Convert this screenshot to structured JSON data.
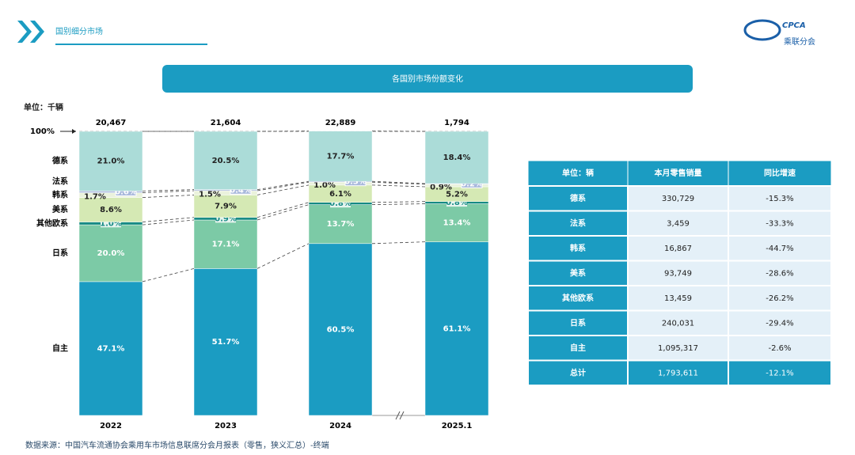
{
  "header": {
    "title": "国别细分市场",
    "logo_text": "CPCA",
    "logo_sub": "乘联分会"
  },
  "chart_data": {
    "type": "stacked_bar_100",
    "title": "各国别市场份额变化",
    "unit_label": "单位：千辆",
    "categories": [
      "2022",
      "2023",
      "2024",
      "2025.1"
    ],
    "total_labels": [
      "20,467",
      "21,604",
      "22,889",
      "1,794"
    ],
    "ylim": [
      0,
      100
    ],
    "yticks": [
      {
        "value": 100,
        "label": "100%"
      }
    ],
    "series": [
      {
        "name": "自主",
        "color": "#1b9cc2",
        "values": [
          47.1,
          51.7,
          60.5,
          61.1
        ],
        "value_labels": [
          "47.1%",
          "51.7%",
          "60.5%",
          "61.1%"
        ]
      },
      {
        "name": "日系",
        "color": "#7ccaa6",
        "values": [
          20.0,
          17.1,
          13.7,
          13.4
        ],
        "value_labels": [
          "20.0%",
          "17.1%",
          "13.7%",
          "13.4%"
        ]
      },
      {
        "name": "其他欧系",
        "color": "#168a84",
        "values": [
          1.0,
          0.9,
          0.8,
          0.8
        ],
        "value_labels": [
          "1.0%",
          "0.9%",
          "0.8%",
          "0.8%"
        ]
      },
      {
        "name": "美系",
        "color": "#d5e9b4",
        "values": [
          8.6,
          7.9,
          6.1,
          5.2
        ],
        "value_labels": [
          "8.6%",
          "7.9%",
          "6.1%",
          "5.2%"
        ]
      },
      {
        "name": "韩系",
        "color": "#eaf2dc",
        "values": [
          1.7,
          1.5,
          1.0,
          0.9
        ],
        "value_labels": [
          "1.7%",
          "1.5%",
          "1.0%",
          "0.9%"
        ]
      },
      {
        "name": "法系",
        "color": "#a9b9dc",
        "values": [
          0.6,
          0.4,
          0.3,
          0.2
        ],
        "value_labels": [
          "0.6%",
          "0.4%",
          "0.3%",
          "0.2%"
        ]
      },
      {
        "name": "德系",
        "color": "#abdcd8",
        "values": [
          21.0,
          20.5,
          17.7,
          18.4
        ],
        "value_labels": [
          "21.0%",
          "20.5%",
          "17.7%",
          "18.4%"
        ]
      }
    ]
  },
  "table": {
    "header": [
      "单位：辆",
      "本月零售销量",
      "同比增速"
    ],
    "rows": [
      [
        "德系",
        "330,729",
        "-15.3%"
      ],
      [
        "法系",
        "3,459",
        "-33.3%"
      ],
      [
        "韩系",
        "16,867",
        "-44.7%"
      ],
      [
        "美系",
        "93,749",
        "-28.6%"
      ],
      [
        "其他欧系",
        "13,459",
        "-26.2%"
      ],
      [
        "日系",
        "240,031",
        "-29.4%"
      ],
      [
        "自主",
        "1,095,317",
        "-2.6%"
      ],
      [
        "总计",
        "1,793,611",
        "-12.1%"
      ]
    ]
  },
  "source": "数据来源：中国汽车流通协会乘用车市场信息联席分会月报表（零售，狭义汇总）-终端"
}
